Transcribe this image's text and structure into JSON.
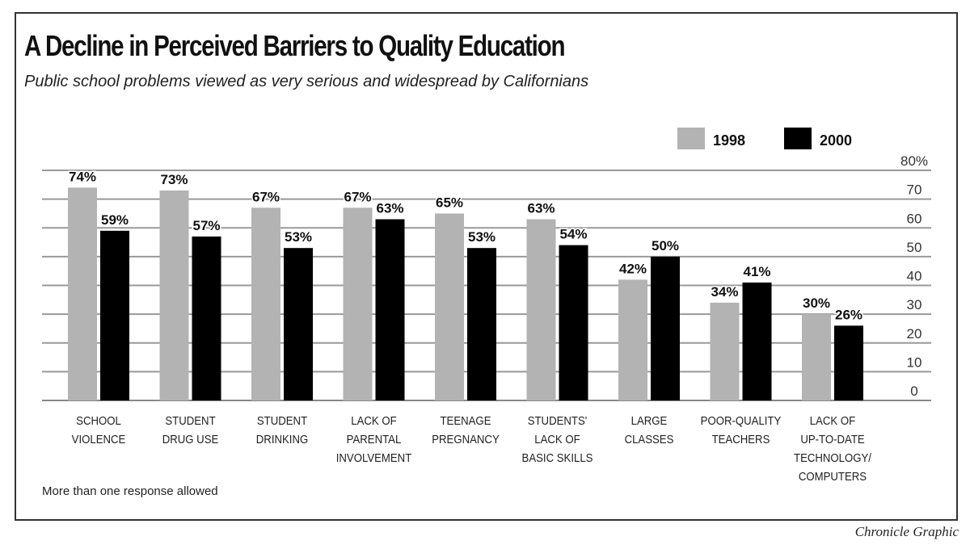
{
  "chart_data": {
    "type": "bar",
    "title": "A Decline in Perceived Barriers to Quality Education",
    "subtitle": "Public school problems viewed as very serious and widespread by Californians",
    "categories": [
      [
        "SCHOOL",
        "VIOLENCE"
      ],
      [
        "STUDENT",
        "DRUG USE"
      ],
      [
        "STUDENT",
        "DRINKING"
      ],
      [
        "LACK OF",
        "PARENTAL",
        "INVOLVEMENT"
      ],
      [
        "TEENAGE",
        "PREGNANCY"
      ],
      [
        "STUDENTS'",
        "LACK OF",
        "BASIC SKILLS"
      ],
      [
        "LARGE",
        "CLASSES"
      ],
      [
        "POOR-QUALITY",
        "TEACHERS"
      ],
      [
        "LACK OF",
        "UP-TO-DATE",
        "TECHNOLOGY/",
        "COMPUTERS"
      ]
    ],
    "series": [
      {
        "name": "1998",
        "color": "#b3b3b3",
        "values": [
          74,
          73,
          67,
          67,
          65,
          63,
          42,
          34,
          30
        ]
      },
      {
        "name": "2000",
        "color": "#000000",
        "values": [
          59,
          57,
          53,
          63,
          53,
          54,
          50,
          41,
          26
        ]
      }
    ],
    "ylim": [
      0,
      80
    ],
    "yticks": [
      "0",
      "10",
      "20",
      "30",
      "40",
      "50",
      "60",
      "70",
      "80%"
    ],
    "ytick_values": [
      0,
      10,
      20,
      30,
      40,
      50,
      60,
      70,
      80
    ],
    "value_suffix": "%",
    "grid": true,
    "legend_position": "top-right",
    "note": "More than one response allowed",
    "credit": "Chronicle Graphic"
  }
}
